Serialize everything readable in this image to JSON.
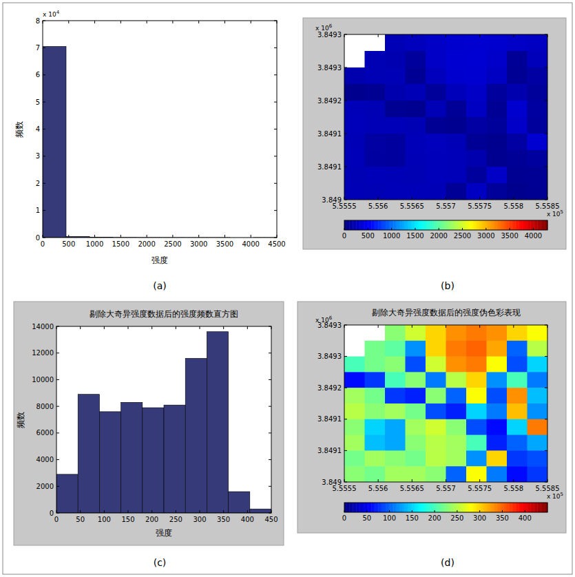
{
  "chart_data": [
    {
      "type": "histogram",
      "label": "(a)",
      "x_label": "强度",
      "y_label": "频数",
      "y_multiplier": {
        "base": "x 10",
        "exponent": "4"
      },
      "bins": [
        0,
        450,
        900,
        1350,
        1800,
        2250,
        2700,
        3150,
        3600,
        4050,
        4500
      ],
      "values": [
        7.05,
        0.04,
        0.01,
        0.005,
        0.003,
        0.002,
        0.001,
        0.001,
        0,
        0.001
      ],
      "color": "#363a78",
      "xlim": [
        0,
        4500
      ],
      "xticks": [
        0,
        500,
        1000,
        1500,
        2000,
        2500,
        3000,
        3500,
        4000,
        4500
      ],
      "ylim": [
        0,
        8
      ],
      "yticks": [
        0,
        1,
        2,
        3,
        4,
        5,
        6,
        7,
        8
      ],
      "grid": false
    },
    {
      "type": "heatmap",
      "label": "(b)",
      "x_multiplier": {
        "base": "x 10",
        "exponent": "5"
      },
      "y_multiplier": {
        "base": "x 10",
        "exponent": "6"
      },
      "x_edges": [
        5.5555,
        5.5558,
        5.5561,
        5.5564,
        5.5567,
        5.557,
        5.5573,
        5.5576,
        5.5579,
        5.5582,
        5.5585
      ],
      "y_edges": [
        3.849315,
        3.8492835,
        3.849252,
        3.8492205,
        3.849189,
        3.8491575,
        3.849126,
        3.8490945,
        3.849063,
        3.8490315,
        3.849
      ],
      "cells": [
        [
          null,
          null,
          230,
          260,
          300,
          330,
          340,
          330,
          300,
          280
        ],
        [
          null,
          220,
          210,
          120,
          300,
          340,
          350,
          320,
          100,
          250
        ],
        [
          200,
          220,
          230,
          90,
          260,
          330,
          340,
          280,
          90,
          150
        ],
        [
          60,
          80,
          200,
          230,
          110,
          250,
          300,
          120,
          200,
          110
        ],
        [
          240,
          220,
          80,
          70,
          230,
          100,
          280,
          90,
          330,
          140
        ],
        [
          250,
          230,
          240,
          220,
          90,
          70,
          150,
          110,
          310,
          120
        ],
        [
          230,
          150,
          130,
          240,
          260,
          230,
          90,
          60,
          150,
          340
        ],
        [
          240,
          140,
          130,
          230,
          250,
          240,
          200,
          70,
          100,
          130
        ],
        [
          220,
          240,
          230,
          220,
          250,
          240,
          120,
          300,
          80,
          90
        ],
        [
          230,
          220,
          240,
          240,
          230,
          100,
          280,
          110,
          60,
          80
        ]
      ],
      "colorbar": {
        "range": [
          0,
          4300
        ],
        "ticks": [
          0,
          500,
          1000,
          1500,
          2000,
          2500,
          3000,
          3500,
          4000
        ]
      },
      "xlim": [
        5.5555,
        5.5585
      ],
      "xticks": [
        5.5555,
        5.556,
        5.5565,
        5.557,
        5.5575,
        5.558,
        5.5585
      ],
      "ylim": [
        3.849,
        3.849315
      ],
      "yticks": [
        3.849,
        {
          "value": 3.849063,
          "label": "3.8491"
        },
        {
          "value": 3.849126,
          "label": "3.8491"
        },
        {
          "value": 3.849189,
          "label": "3.8492"
        },
        {
          "value": 3.849252,
          "label": "3.8493"
        },
        {
          "value": 3.849315,
          "label": "3.8493"
        }
      ],
      "grid": false
    },
    {
      "type": "histogram",
      "label": "(c)",
      "title": "剔除大奇异强度数据后的强度频数直方图",
      "x_label": "强度",
      "y_label": "频数",
      "bins": [
        0,
        45,
        90,
        135,
        180,
        225,
        270,
        315,
        360,
        405,
        450
      ],
      "values": [
        2900,
        8900,
        7600,
        8300,
        7900,
        8100,
        11600,
        13600,
        1600,
        300
      ],
      "color": "#363a78",
      "xlim": [
        0,
        450
      ],
      "xticks": [
        0,
        50,
        100,
        150,
        200,
        250,
        300,
        350,
        400,
        450
      ],
      "ylim": [
        0,
        14000
      ],
      "yticks": [
        0,
        2000,
        4000,
        6000,
        8000,
        10000,
        12000,
        14000
      ],
      "grid": false
    },
    {
      "type": "heatmap",
      "label": "(d)",
      "title": "剔除大奇异强度数据后的强度伪色彩表现",
      "x_multiplier": {
        "base": "x 10",
        "exponent": "5"
      },
      "y_multiplier": {
        "base": "x 10",
        "exponent": "6"
      },
      "x_edges": [
        5.5555,
        5.5558,
        5.5561,
        5.5564,
        5.5567,
        5.557,
        5.5573,
        5.5576,
        5.5579,
        5.5582,
        5.5585
      ],
      "y_edges": [
        3.849315,
        3.8492835,
        3.849252,
        3.8492205,
        3.849189,
        3.8491575,
        3.849126,
        3.8490945,
        3.849063,
        3.8490315,
        3.849
      ],
      "cells": [
        [
          null,
          null,
          230,
          260,
          300,
          330,
          340,
          330,
          300,
          280
        ],
        [
          null,
          220,
          210,
          120,
          300,
          340,
          350,
          320,
          100,
          250
        ],
        [
          200,
          220,
          230,
          90,
          260,
          330,
          340,
          280,
          90,
          150
        ],
        [
          60,
          80,
          200,
          230,
          110,
          250,
          300,
          120,
          200,
          110
        ],
        [
          240,
          220,
          80,
          70,
          230,
          100,
          280,
          90,
          330,
          140
        ],
        [
          250,
          230,
          240,
          220,
          90,
          70,
          150,
          110,
          310,
          120
        ],
        [
          230,
          150,
          130,
          240,
          260,
          230,
          90,
          60,
          150,
          340
        ],
        [
          240,
          140,
          130,
          230,
          250,
          240,
          200,
          70,
          100,
          130
        ],
        [
          220,
          240,
          230,
          220,
          250,
          240,
          120,
          300,
          80,
          90
        ],
        [
          230,
          220,
          240,
          240,
          230,
          100,
          280,
          110,
          60,
          80
        ]
      ],
      "colorbar": {
        "range": [
          0,
          450
        ],
        "ticks": [
          0,
          50,
          100,
          150,
          200,
          250,
          300,
          350,
          400
        ]
      },
      "xlim": [
        5.5555,
        5.5585
      ],
      "xticks": [
        5.5555,
        5.556,
        5.5565,
        5.557,
        5.5575,
        5.558,
        5.5585
      ],
      "ylim": [
        3.849,
        3.849315
      ],
      "yticks": [
        3.849,
        {
          "value": 3.849063,
          "label": "3.8491"
        },
        {
          "value": 3.849126,
          "label": "3.8491"
        },
        {
          "value": 3.849189,
          "label": "3.8492"
        },
        {
          "value": 3.849252,
          "label": "3.8493"
        },
        {
          "value": 3.849315,
          "label": "3.8493"
        }
      ],
      "grid": false
    }
  ]
}
